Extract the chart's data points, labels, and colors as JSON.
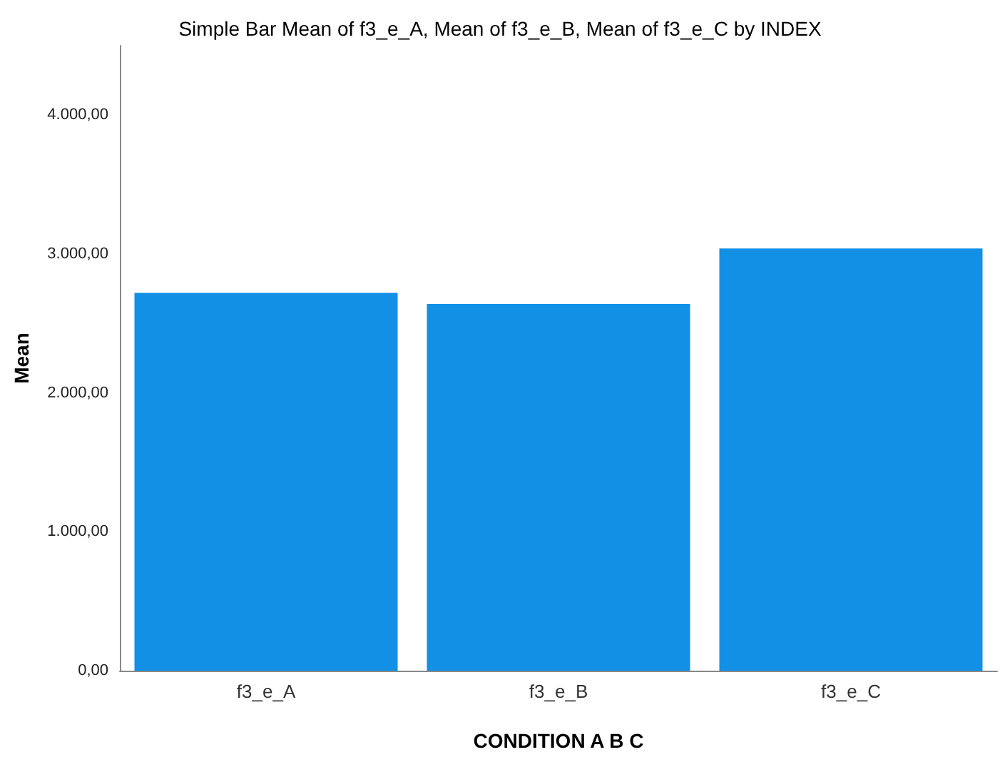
{
  "chart_data": {
    "type": "bar",
    "title": "Simple Bar Mean of f3_e_A, Mean of f3_e_B, Mean of f3_e_C by INDEX",
    "xlabel": "CONDITION A B C",
    "ylabel": "Mean",
    "categories": [
      "f3_e_A",
      "f3_e_B",
      "f3_e_C"
    ],
    "values": [
      2720,
      2640,
      3040
    ],
    "color": "#1190e6",
    "ylim": [
      0,
      4500
    ],
    "yticks": [
      {
        "value": 0,
        "label": "0,00"
      },
      {
        "value": 1000,
        "label": "1.000,00"
      },
      {
        "value": 2000,
        "label": "2.000,00"
      },
      {
        "value": 3000,
        "label": "3.000,00"
      },
      {
        "value": 4000,
        "label": "4.000,00"
      }
    ],
    "grid": false
  }
}
